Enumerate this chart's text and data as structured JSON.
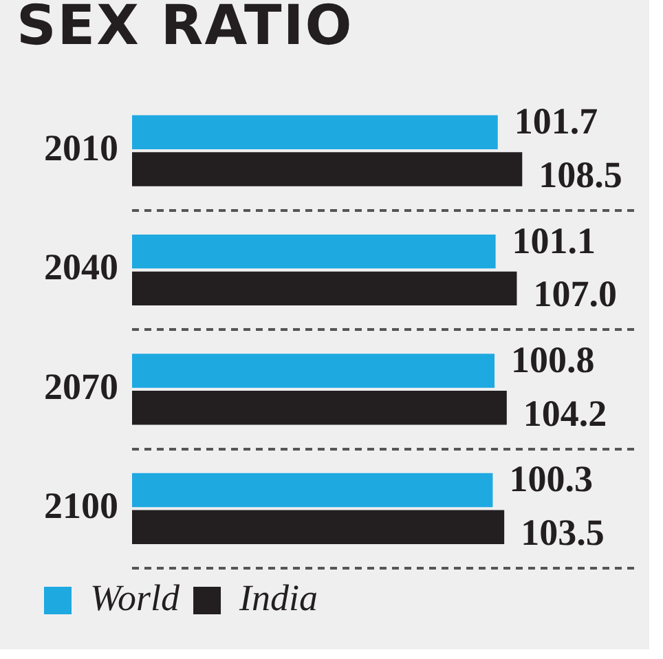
{
  "chart_data": {
    "type": "bar",
    "orientation": "horizontal",
    "title": "SEX RATIO",
    "categories": [
      "2010",
      "2040",
      "2070",
      "2100"
    ],
    "series": [
      {
        "name": "World",
        "color": "#1ea9e1",
        "values": [
          101.7,
          101.1,
          100.8,
          100.3
        ],
        "value_labels": [
          "101.7",
          "101.1",
          "100.8",
          "100.3"
        ]
      },
      {
        "name": "India",
        "color": "#231f20",
        "values": [
          108.5,
          107.0,
          104.2,
          103.5
        ],
        "value_labels": [
          "108.5",
          "107.0",
          "104.2",
          "103.5"
        ]
      }
    ],
    "grid": "y",
    "legend": "bottom left",
    "tick_labels": "y"
  }
}
